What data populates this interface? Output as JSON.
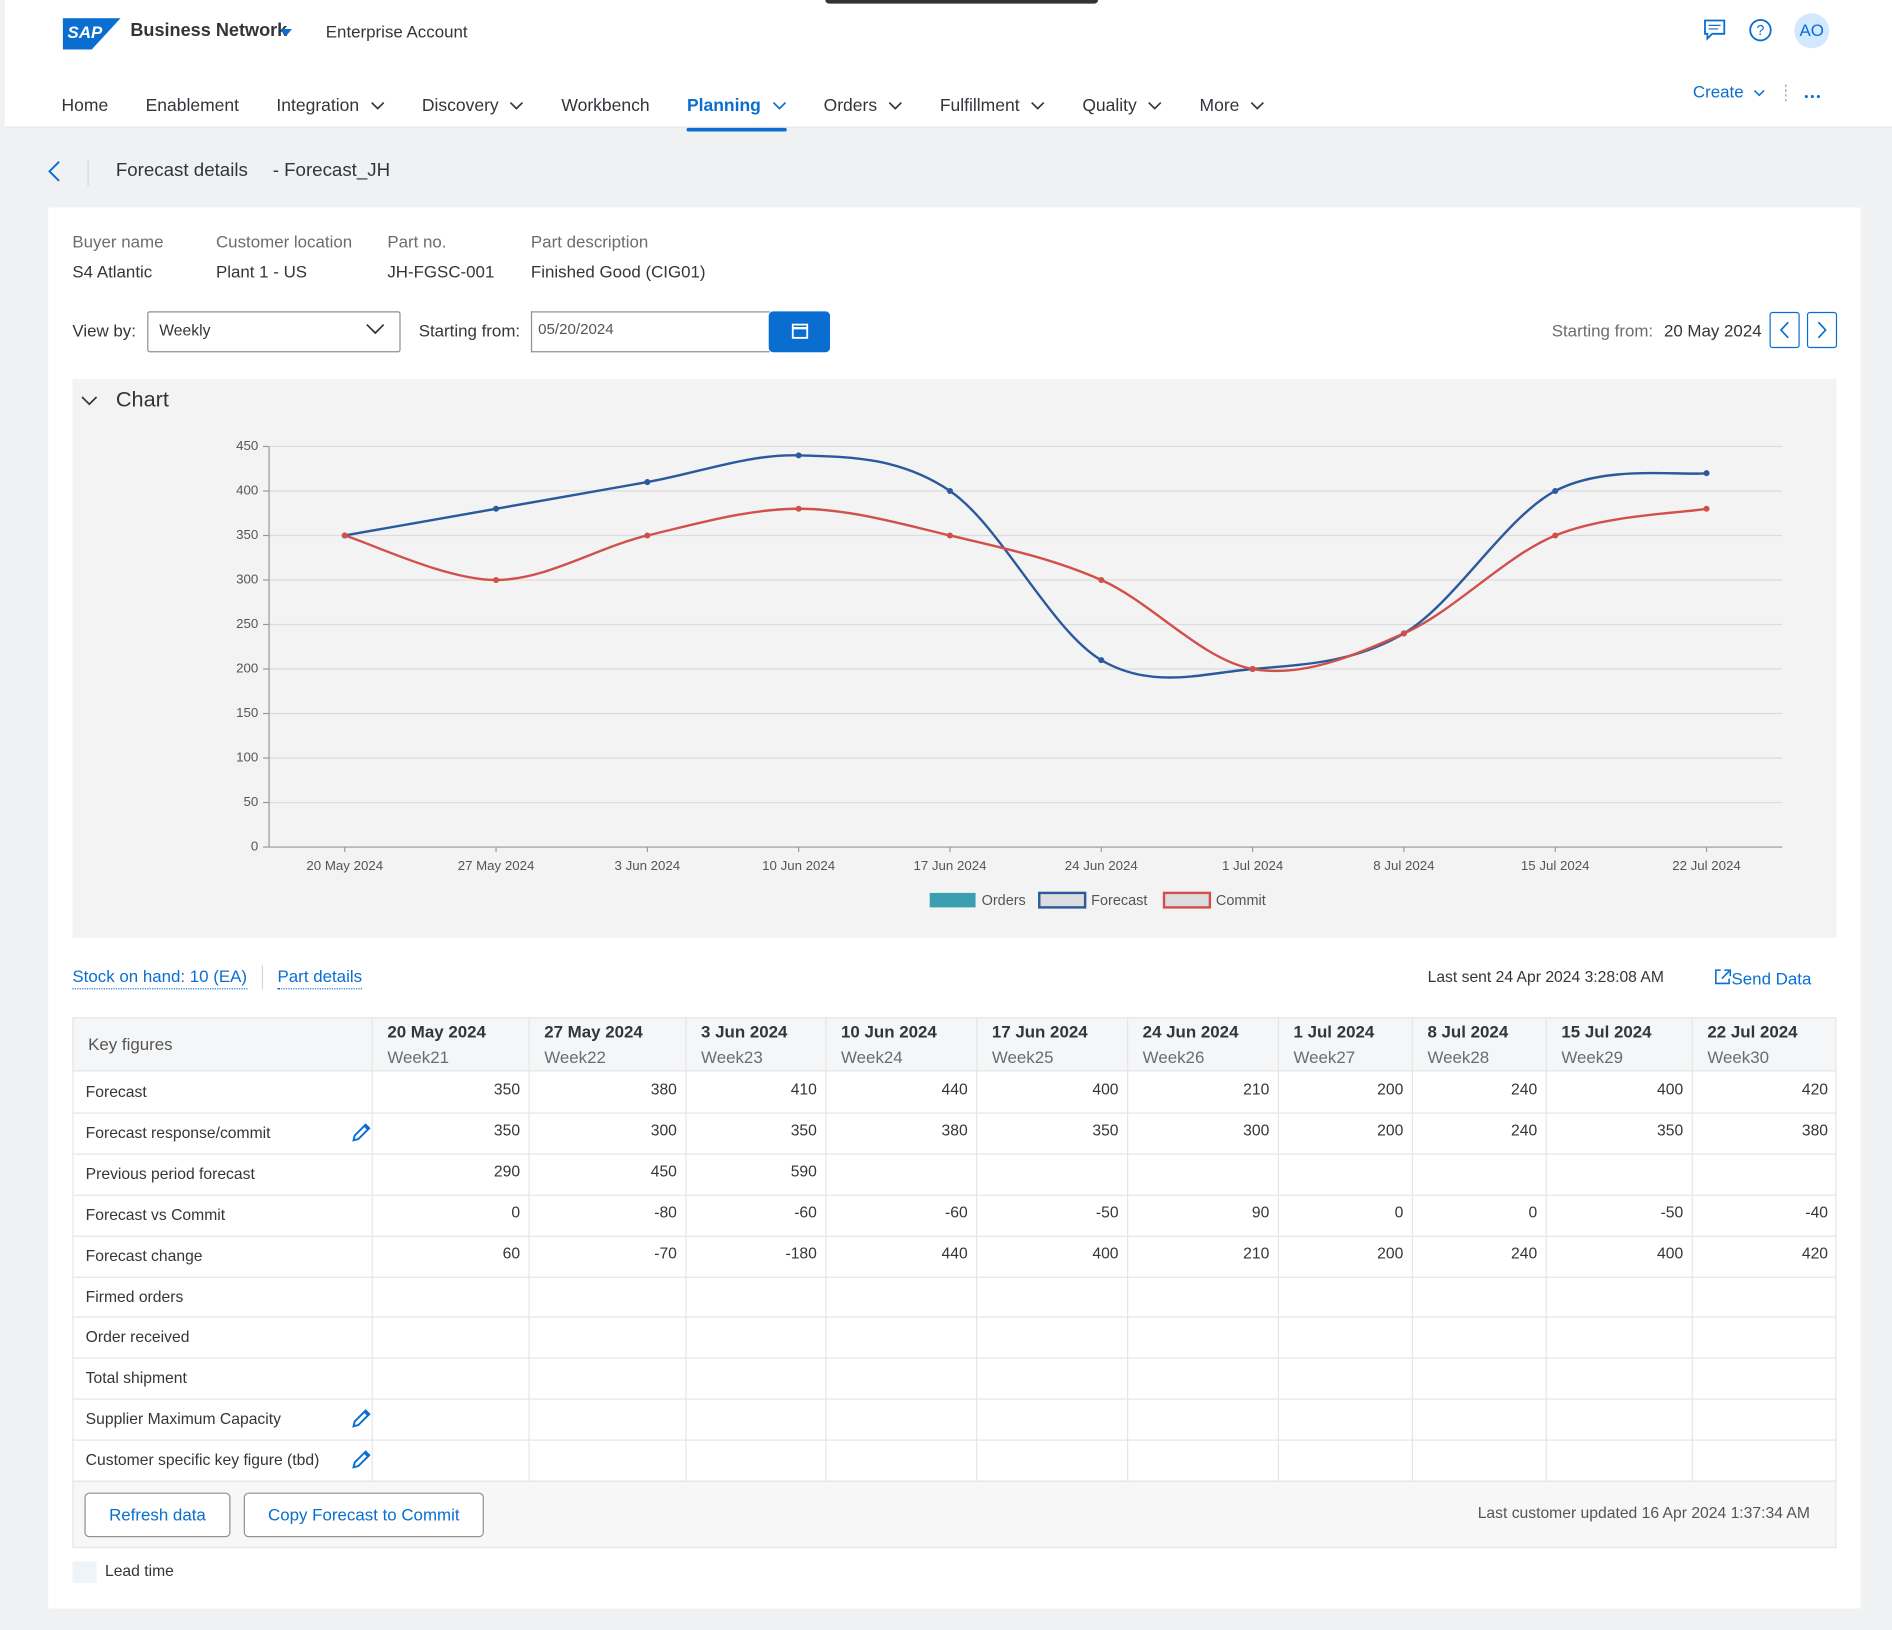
{
  "header": {
    "logo": "SAP",
    "product": "Business Network",
    "account": "Enterprise Account",
    "avatar": "AO",
    "create": "Create"
  },
  "nav": [
    {
      "label": "Home",
      "menu": false
    },
    {
      "label": "Enablement",
      "menu": false
    },
    {
      "label": "Integration",
      "menu": true
    },
    {
      "label": "Discovery",
      "menu": true
    },
    {
      "label": "Workbench",
      "menu": false
    },
    {
      "label": "Planning",
      "menu": true
    },
    {
      "label": "Orders",
      "menu": true
    },
    {
      "label": "Fulfillment",
      "menu": true
    },
    {
      "label": "Quality",
      "menu": true
    },
    {
      "label": "More",
      "menu": true
    }
  ],
  "nav_active": "Planning",
  "page": {
    "title": "Forecast details",
    "subtitle": "- Forecast_JH"
  },
  "fields": [
    {
      "label": "Buyer name",
      "value": "S4 Atlantic"
    },
    {
      "label": "Customer location",
      "value": "Plant 1 - US"
    },
    {
      "label": "Part no.",
      "value": "JH-FGSC-001"
    },
    {
      "label": "Part description",
      "value": "Finished Good (CIG01)"
    }
  ],
  "filters": {
    "view_by_label": "View by:",
    "view_by": "Weekly",
    "start_label": "Starting from:",
    "start": "05/20/2024",
    "range_label": "Starting from:",
    "range_start": "20 May 2024"
  },
  "chart_panel": "Chart",
  "chart_data": {
    "type": "line",
    "categories": [
      "20 May 2024",
      "27 May 2024",
      "3 Jun 2024",
      "10 Jun 2024",
      "17 Jun 2024",
      "24 Jun 2024",
      "1 Jul 2024",
      "8 Jul 2024",
      "15 Jul 2024",
      "22 Jul 2024"
    ],
    "series": [
      {
        "name": "Orders",
        "type": "bar",
        "color": "#3a9fb1",
        "values": [
          null,
          null,
          null,
          null,
          null,
          null,
          null,
          null,
          null,
          null
        ]
      },
      {
        "name": "Forecast",
        "type": "line",
        "color": "#2a5a9b",
        "values": [
          350,
          380,
          410,
          440,
          400,
          210,
          200,
          240,
          400,
          420
        ]
      },
      {
        "name": "Commit",
        "type": "line",
        "color": "#d1504a",
        "values": [
          350,
          300,
          350,
          380,
          350,
          300,
          200,
          240,
          350,
          380
        ]
      }
    ],
    "ylim": [
      0,
      450
    ],
    "yticks": [
      0,
      50,
      100,
      150,
      200,
      250,
      300,
      350,
      400,
      450
    ],
    "grid": true,
    "smooth": true,
    "legend": "bottom"
  },
  "links": {
    "stock": "Stock on hand: 10  (EA)",
    "part": "Part details",
    "last_sent": "Last sent 24 Apr 2024 3:28:08 AM",
    "send": "Send Data"
  },
  "table": {
    "header": "Key figures",
    "columns": [
      {
        "date": "20 May 2024",
        "week": "Week21"
      },
      {
        "date": "27 May 2024",
        "week": "Week22"
      },
      {
        "date": "3 Jun 2024",
        "week": "Week23"
      },
      {
        "date": "10 Jun 2024",
        "week": "Week24"
      },
      {
        "date": "17 Jun 2024",
        "week": "Week25"
      },
      {
        "date": "24 Jun 2024",
        "week": "Week26"
      },
      {
        "date": "1 Jul 2024",
        "week": "Week27"
      },
      {
        "date": "8 Jul 2024",
        "week": "Week28"
      },
      {
        "date": "15 Jul 2024",
        "week": "Week29"
      },
      {
        "date": "22 Jul 2024",
        "week": "Week30"
      }
    ],
    "rows": [
      {
        "label": "Forecast",
        "editable": false,
        "values": [
          350,
          380,
          410,
          440,
          400,
          210,
          200,
          240,
          400,
          420
        ]
      },
      {
        "label": "Forecast response/commit",
        "editable": true,
        "values": [
          350,
          300,
          350,
          380,
          350,
          300,
          200,
          240,
          350,
          380
        ]
      },
      {
        "label": "Previous period forecast",
        "editable": false,
        "values": [
          290,
          450,
          590,
          null,
          null,
          null,
          null,
          null,
          null,
          null
        ]
      },
      {
        "label": "Forecast vs Commit",
        "editable": false,
        "values": [
          0,
          -80,
          -60,
          -60,
          -50,
          90,
          0,
          0,
          -50,
          -40
        ]
      },
      {
        "label": "Forecast change",
        "editable": false,
        "values": [
          60,
          -70,
          -180,
          440,
          400,
          210,
          200,
          240,
          400,
          420
        ]
      },
      {
        "label": "Firmed orders",
        "editable": false,
        "values": [
          null,
          null,
          null,
          null,
          null,
          null,
          null,
          null,
          null,
          null
        ]
      },
      {
        "label": "Order received",
        "editable": false,
        "values": [
          null,
          null,
          null,
          null,
          null,
          null,
          null,
          null,
          null,
          null
        ]
      },
      {
        "label": "Total shipment",
        "editable": false,
        "values": [
          null,
          null,
          null,
          null,
          null,
          null,
          null,
          null,
          null,
          null
        ]
      },
      {
        "label": "Supplier Maximum Capacity",
        "editable": true,
        "values": [
          null,
          null,
          null,
          null,
          null,
          null,
          null,
          null,
          null,
          null
        ]
      },
      {
        "label": "Customer specific key figure (tbd)",
        "editable": true,
        "values": [
          null,
          null,
          null,
          null,
          null,
          null,
          null,
          null,
          null,
          null
        ]
      }
    ]
  },
  "footer": {
    "refresh": "Refresh data",
    "copy": "Copy Forecast to Commit",
    "last_updated": "Last customer updated 16 Apr 2024 1:37:34 AM",
    "legend": "Lead time"
  }
}
